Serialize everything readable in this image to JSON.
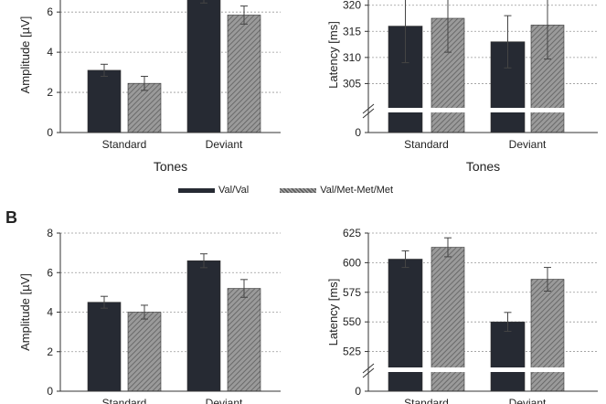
{
  "colors": {
    "val_val": "#262a33",
    "met": "#888888",
    "grid": "#999999",
    "axis": "#333333"
  },
  "panel_labels": {
    "b": "B"
  },
  "legend": [
    {
      "label": "Val/Val",
      "color": "#262a33",
      "pattern": "solid"
    },
    {
      "label": "Val/Met-Met/Met",
      "color": "#888888",
      "pattern": "hatched"
    }
  ],
  "chart_data": [
    {
      "id": "a-amplitude",
      "type": "bar",
      "categories": [
        "Standard",
        "Deviant"
      ],
      "series": [
        {
          "name": "Val/Val",
          "values": [
            3.1,
            6.8
          ],
          "errors": [
            0.3,
            0.35
          ]
        },
        {
          "name": "Val/Met-Met/Met",
          "values": [
            2.45,
            5.85
          ],
          "errors": [
            0.35,
            0.45
          ]
        }
      ],
      "xlabel": "Tones",
      "ylabel": "Amplitude [µV]",
      "yticks": [
        0,
        2,
        4,
        6
      ],
      "ylim": [
        0,
        6.6
      ],
      "axis_break": false,
      "grid": true,
      "clip_top": true
    },
    {
      "id": "a-latency",
      "type": "bar",
      "categories": [
        "Standard",
        "Deviant"
      ],
      "series": [
        {
          "name": "Val/Val",
          "values": [
            316,
            313
          ],
          "errors": [
            7,
            5
          ]
        },
        {
          "name": "Val/Met-Met/Met",
          "values": [
            317.5,
            316.2
          ],
          "errors": [
            6.5,
            6.5
          ]
        }
      ],
      "xlabel": "Tones",
      "ylabel": "Latency [ms]",
      "yticks": [
        0,
        305,
        310,
        315,
        320
      ],
      "ylim": [
        300,
        321
      ],
      "axis_break": true,
      "grid": true,
      "clip_top": true
    },
    {
      "id": "b-amplitude",
      "type": "bar",
      "categories": [
        "Standard",
        "Deviant"
      ],
      "series": [
        {
          "name": "Val/Val",
          "values": [
            4.5,
            6.6
          ],
          "errors": [
            0.3,
            0.35
          ]
        },
        {
          "name": "Val/Met-Met/Met",
          "values": [
            4.0,
            5.2
          ],
          "errors": [
            0.35,
            0.45
          ]
        }
      ],
      "xlabel": "",
      "ylabel": "Amplitude [µV]",
      "yticks": [
        0,
        2,
        4,
        6,
        8
      ],
      "ylim": [
        0,
        8
      ],
      "axis_break": false,
      "grid": true,
      "clip_top": false
    },
    {
      "id": "b-latency",
      "type": "bar",
      "categories": [
        "Standard",
        "Deviant"
      ],
      "series": [
        {
          "name": "Val/Val",
          "values": [
            603,
            550
          ],
          "errors": [
            7,
            8
          ]
        },
        {
          "name": "Val/Met-Met/Met",
          "values": [
            613,
            586
          ],
          "errors": [
            8,
            10
          ]
        }
      ],
      "xlabel": "",
      "ylabel": "Latency [ms]",
      "yticks": [
        0,
        525,
        550,
        575,
        600,
        625
      ],
      "ylim": [
        510,
        625
      ],
      "axis_break": true,
      "grid": true,
      "clip_top": false
    }
  ]
}
